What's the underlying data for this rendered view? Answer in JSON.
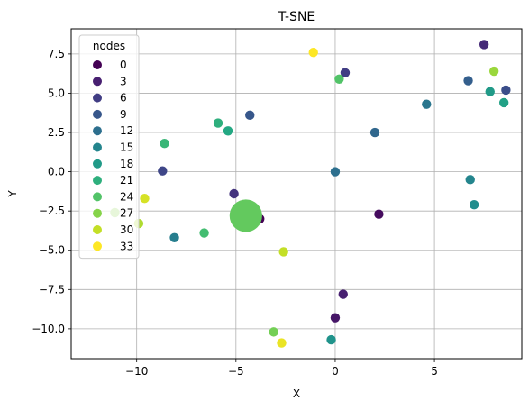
{
  "chart_data": {
    "type": "scatter",
    "title": "T-SNE",
    "xlabel": "X",
    "ylabel": "Y",
    "xlim": [
      -13.3,
      9.4
    ],
    "ylim": [
      -11.9,
      9.1
    ],
    "xticks": [
      -10,
      -5,
      0,
      5
    ],
    "yticks": [
      -10.0,
      -7.5,
      -5.0,
      -2.5,
      0.0,
      2.5,
      5.0,
      7.5
    ],
    "xtick_labels": [
      "−10",
      "−5",
      "0",
      "5"
    ],
    "ytick_labels": [
      "−10.0",
      "−7.5",
      "−5.0",
      "−2.5",
      "0.0",
      "2.5",
      "5.0",
      "7.5"
    ],
    "grid": true,
    "colormap": "viridis",
    "node_range": [
      0,
      33
    ],
    "legend": {
      "title": "nodes",
      "placement": "top-left",
      "entries": [
        "0",
        "3",
        "6",
        "9",
        "12",
        "15",
        "18",
        "21",
        "24",
        "27",
        "30",
        "33"
      ],
      "values": [
        0,
        3,
        6,
        9,
        12,
        15,
        18,
        21,
        24,
        27,
        30,
        33
      ]
    },
    "points": [
      {
        "node": 0,
        "x": -3.8,
        "y": -3.0
      },
      {
        "node": 1,
        "x": 2.2,
        "y": -2.7
      },
      {
        "node": 2,
        "x": 0.0,
        "y": -9.3
      },
      {
        "node": 3,
        "x": 0.4,
        "y": -7.8
      },
      {
        "node": 4,
        "x": 7.5,
        "y": 8.1
      },
      {
        "node": 5,
        "x": -5.1,
        "y": -1.4
      },
      {
        "node": 6,
        "x": 0.5,
        "y": 6.3
      },
      {
        "node": 7,
        "x": -8.7,
        "y": 0.05
      },
      {
        "node": 8,
        "x": 8.6,
        "y": 5.2
      },
      {
        "node": 9,
        "x": -4.3,
        "y": 3.6
      },
      {
        "node": 10,
        "x": 6.7,
        "y": 5.8
      },
      {
        "node": 11,
        "x": 2.0,
        "y": 2.5
      },
      {
        "node": 12,
        "x": 0.0,
        "y": 0.0
      },
      {
        "node": 13,
        "x": 4.6,
        "y": 4.3
      },
      {
        "node": 14,
        "x": -8.1,
        "y": -4.2
      },
      {
        "node": 15,
        "x": 6.8,
        "y": -0.5
      },
      {
        "node": 16,
        "x": 7.0,
        "y": -2.1
      },
      {
        "node": 17,
        "x": -0.2,
        "y": -10.7
      },
      {
        "node": 18,
        "x": 7.8,
        "y": 5.1
      },
      {
        "node": 19,
        "x": 8.5,
        "y": 4.4
      },
      {
        "node": 20,
        "x": -5.4,
        "y": 2.6
      },
      {
        "node": 21,
        "x": -5.9,
        "y": 3.1
      },
      {
        "node": 22,
        "x": -8.6,
        "y": 1.8
      },
      {
        "node": 23,
        "x": -6.6,
        "y": -3.9
      },
      {
        "node": 24,
        "x": 0.2,
        "y": 5.9
      },
      {
        "node": 25,
        "x": -4.5,
        "y": -2.8,
        "size": 300
      },
      {
        "node": 26,
        "x": -3.1,
        "y": -10.2
      },
      {
        "node": 27,
        "x": -11.1,
        "y": -2.6
      },
      {
        "node": 28,
        "x": 8.0,
        "y": 6.4
      },
      {
        "node": 29,
        "x": -9.9,
        "y": -3.3
      },
      {
        "node": 30,
        "x": -2.6,
        "y": -5.1
      },
      {
        "node": 31,
        "x": -9.6,
        "y": -1.7
      },
      {
        "node": 32,
        "x": -2.7,
        "y": -10.9
      },
      {
        "node": 33,
        "x": -1.1,
        "y": 7.6
      }
    ]
  }
}
